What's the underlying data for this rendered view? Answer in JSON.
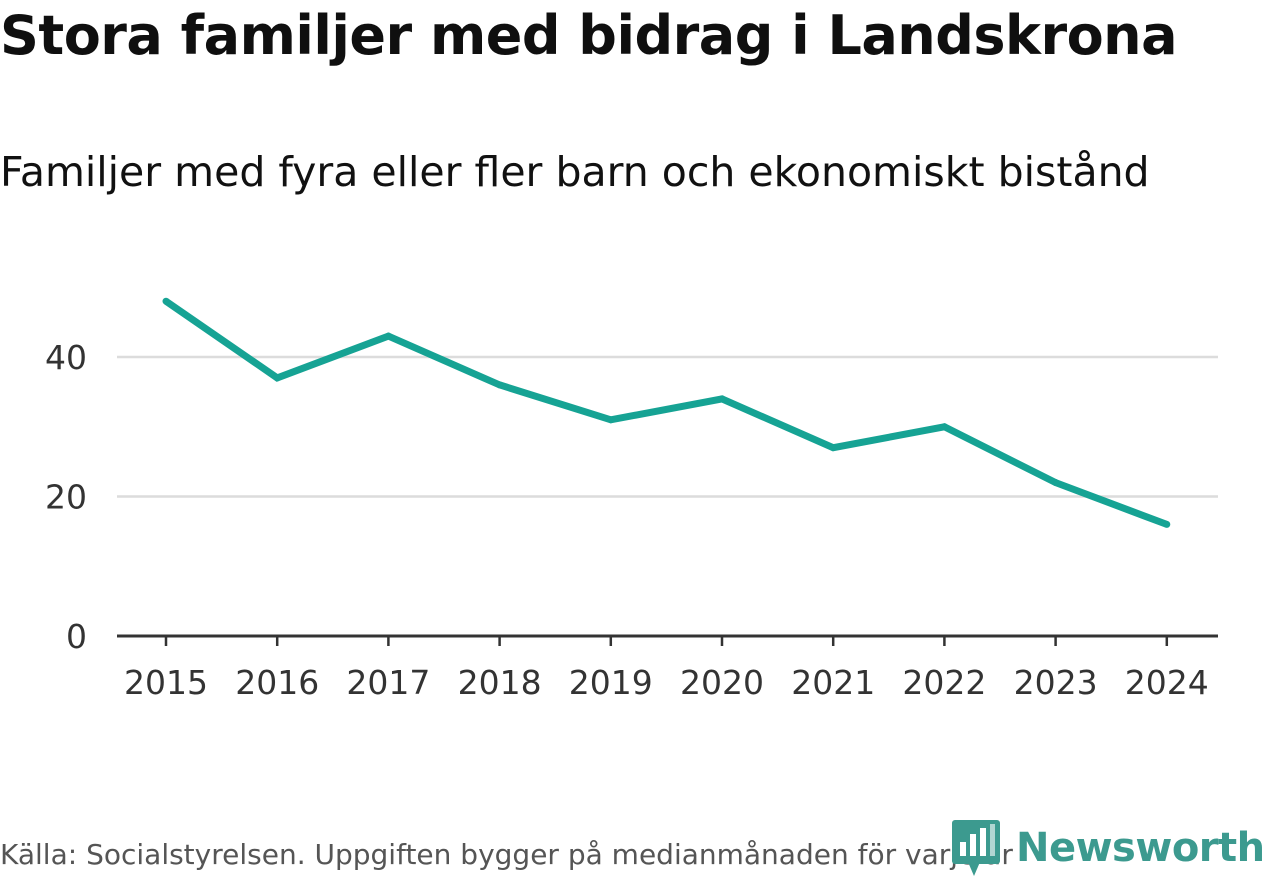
{
  "colors": {
    "line": "#16a394",
    "grid": "#dcdcdc",
    "axis": "#333333",
    "tick_text": "#333333",
    "logo": "#3c9a8f"
  },
  "chart_data": {
    "type": "line",
    "title": "Stora familjer med bidrag i Landskrona",
    "subtitle": "Familjer med fyra eller fler barn och ekonomiskt bistånd",
    "categories": [
      "2015",
      "2016",
      "2017",
      "2018",
      "2019",
      "2020",
      "2021",
      "2022",
      "2023",
      "2024"
    ],
    "series": [
      {
        "name": "Familjer med fyra eller fler barn och ekonomiskt bistånd",
        "values": [
          48,
          37,
          43,
          36,
          31,
          34,
          27,
          30,
          22,
          16
        ]
      }
    ],
    "yticks": [
      0,
      20,
      40
    ],
    "ylim": [
      0,
      52
    ],
    "xlabel": "",
    "ylabel": "",
    "grid": true
  },
  "footer": {
    "source": "Källa: Socialstyrelsen. Uppgiften bygger på medianmånaden för varje år"
  },
  "brand": {
    "name": "Newsworthy",
    "icon": "newsworthy-logo-icon"
  }
}
